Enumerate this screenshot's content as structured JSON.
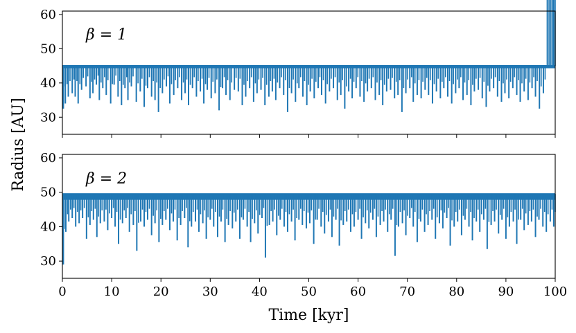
{
  "chart_data": [
    {
      "type": "line",
      "annotation": "β = 1",
      "xlim": [
        0,
        100
      ],
      "ylim": [
        25,
        61
      ],
      "yticks": [
        30,
        40,
        50,
        60
      ],
      "ytick_labels": [
        "30",
        "40",
        "50",
        "60"
      ],
      "xticks": [
        0,
        10,
        20,
        30,
        40,
        50,
        60,
        70,
        80,
        90,
        100
      ],
      "xtick_labels": [],
      "grid": false,
      "series": [
        {
          "color": "#1f77b4",
          "baseline": 45,
          "band_low": 44.3,
          "dip_x": [
            0.2,
            0.6,
            1.2,
            2.0,
            2.6,
            3.2,
            3.9,
            4.8,
            5.6,
            6.2,
            6.9,
            7.5,
            8.2,
            8.9,
            9.8,
            10.5,
            11.3,
            12.0,
            12.7,
            13.3,
            14.0,
            15.0,
            15.8,
            16.6,
            17.3,
            18.1,
            18.8,
            19.5,
            20.3,
            21.1,
            21.8,
            22.6,
            23.4,
            24.2,
            24.9,
            25.6,
            26.4,
            27.2,
            28.0,
            28.7,
            29.4,
            30.2,
            31.0,
            31.8,
            32.5,
            33.2,
            34.0,
            34.9,
            35.7,
            36.5,
            37.2,
            38.0,
            38.8,
            39.5,
            40.3,
            41.1,
            41.9,
            42.6,
            43.3,
            44.1,
            44.9,
            45.7,
            46.5,
            47.3,
            48.0,
            48.8,
            49.6,
            50.3,
            51.1,
            51.9,
            52.6,
            53.4,
            54.2,
            55.0,
            55.8,
            56.5,
            57.3,
            58.1,
            58.8,
            59.6,
            60.4,
            61.2,
            61.9,
            62.7,
            63.5,
            64.3,
            65.0,
            65.8,
            66.6,
            67.4,
            68.1,
            68.9,
            69.7,
            70.5,
            71.2,
            72.0,
            72.8,
            73.6,
            74.3,
            75.1,
            75.9,
            76.7,
            77.4,
            78.2,
            79.0,
            79.8,
            80.5,
            81.3,
            82.1,
            82.9,
            83.6,
            84.4,
            85.2,
            86.0,
            86.7,
            87.5,
            88.3,
            89.1,
            89.8,
            90.6,
            91.4,
            92.2,
            92.9,
            93.7,
            94.5,
            95.3,
            96.0,
            96.8,
            97.6,
            98.4,
            99.1,
            99.7
          ],
          "dip_y": [
            32.5,
            34,
            36,
            37,
            36,
            34,
            38,
            39,
            35.5,
            37,
            39.5,
            35,
            38.5,
            36.5,
            34,
            39.5,
            36,
            33.5,
            38.5,
            35,
            39,
            34.5,
            37.5,
            33,
            38.5,
            36,
            35,
            31.5,
            37,
            39,
            34,
            36.5,
            38.5,
            35,
            37,
            33.5,
            38.5,
            36,
            37.5,
            34,
            38,
            35.5,
            37,
            32,
            38.5,
            36.5,
            35,
            38,
            37.5,
            33.5,
            36,
            38.5,
            34.5,
            37,
            38,
            33.5,
            36,
            37.5,
            35,
            38.5,
            36.5,
            31.5,
            37,
            34.5,
            38.5,
            36,
            33.5,
            37.5,
            35.5,
            38.5,
            36.5,
            34,
            37.5,
            38.5,
            35,
            36.5,
            32.5,
            37.5,
            35.5,
            38.5,
            36,
            34.5,
            37.5,
            38.5,
            35,
            36.5,
            33.5,
            37.5,
            38,
            35.5,
            36.5,
            31.5,
            37,
            38.5,
            34.5,
            36.5,
            35.5,
            38,
            36.5,
            34,
            37.5,
            35.5,
            38.5,
            36,
            34,
            37,
            38.5,
            35,
            36.5,
            33.5,
            37.5,
            38,
            35.5,
            33,
            37.5,
            38.5,
            36,
            34.5,
            37,
            35.5,
            38.5,
            36.5,
            34.5,
            37.5,
            35,
            38.5,
            36,
            32.5,
            37
          ]
        }
      ]
    },
    {
      "type": "line",
      "annotation": "β = 2",
      "xlim": [
        0,
        100
      ],
      "ylim": [
        25,
        61
      ],
      "yticks": [
        30,
        40,
        50,
        60
      ],
      "ytick_labels": [
        "30",
        "40",
        "50",
        "60"
      ],
      "xticks": [
        0,
        10,
        20,
        30,
        40,
        50,
        60,
        70,
        80,
        90,
        100
      ],
      "xtick_labels": [
        "0",
        "10",
        "20",
        "30",
        "40",
        "50",
        "60",
        "70",
        "80",
        "90",
        "100"
      ],
      "xlabel": "Time [kyr]",
      "grid": false,
      "series": [
        {
          "color": "#1f77b4",
          "baseline": 49.5,
          "band_low": 47.8,
          "dip_x": [
            0.2,
            0.7,
            1.3,
            2.0,
            2.7,
            3.4,
            4.1,
            4.9,
            5.6,
            6.3,
            7.0,
            7.7,
            8.5,
            9.2,
            10.0,
            10.7,
            11.4,
            12.2,
            12.9,
            13.6,
            14.4,
            15.1,
            15.9,
            16.6,
            17.3,
            18.1,
            18.8,
            19.6,
            20.3,
            21.0,
            21.8,
            22.5,
            23.3,
            24.0,
            24.8,
            25.5,
            26.2,
            27.0,
            27.7,
            28.5,
            29.2,
            30.0,
            30.7,
            31.5,
            32.2,
            33.0,
            33.7,
            34.5,
            35.2,
            36.0,
            36.7,
            37.5,
            38.2,
            39.0,
            39.7,
            40.5,
            41.2,
            42.0,
            42.7,
            43.5,
            44.2,
            45.0,
            45.7,
            46.5,
            47.2,
            48.0,
            48.7,
            49.5,
            50.2,
            51.0,
            51.7,
            52.5,
            53.2,
            54.0,
            54.7,
            55.5,
            56.2,
            57.0,
            57.7,
            58.5,
            59.2,
            60.0,
            60.7,
            61.5,
            62.2,
            63.0,
            63.7,
            64.5,
            65.2,
            66.0,
            66.7,
            67.5,
            68.2,
            69.0,
            69.7,
            70.5,
            71.2,
            72.0,
            72.7,
            73.5,
            74.2,
            75.0,
            75.7,
            76.5,
            77.2,
            78.0,
            78.7,
            79.5,
            80.2,
            81.0,
            81.7,
            82.5,
            83.2,
            84.0,
            84.7,
            85.5,
            86.2,
            87.0,
            87.7,
            88.5,
            89.2,
            90.0,
            90.7,
            91.5,
            92.2,
            93.0,
            93.7,
            94.5,
            95.2,
            96.0,
            96.7,
            97.5,
            98.2,
            99.0,
            99.7
          ],
          "dip_y": [
            29,
            38.5,
            41.5,
            42.5,
            40,
            41,
            42.5,
            36.5,
            40.5,
            42,
            37,
            41,
            41.5,
            39,
            42.5,
            40,
            35,
            41,
            42.5,
            38.5,
            40.5,
            33,
            41.5,
            40,
            42,
            37.5,
            41,
            35.5,
            40.5,
            42,
            39,
            41.5,
            36,
            40.5,
            42.5,
            34,
            40,
            41.5,
            38.5,
            41,
            36.5,
            42,
            40,
            37,
            41.5,
            35.5,
            40.5,
            39.5,
            41.5,
            36.5,
            42,
            40,
            35.5,
            41,
            38,
            42.5,
            31,
            40.5,
            41.5,
            37.5,
            42,
            40,
            38.5,
            41.5,
            36,
            42,
            40.5,
            39.5,
            41,
            35,
            42,
            40,
            38,
            41.5,
            37,
            42,
            34.5,
            40.5,
            41.5,
            38.5,
            40,
            42,
            36.5,
            41,
            39.5,
            42,
            37,
            40.5,
            41.5,
            38.5,
            42,
            31.5,
            40,
            41,
            37.5,
            42.5,
            40,
            35.5,
            41.5,
            38.5,
            40.5,
            42,
            36.5,
            41,
            39.5,
            42.5,
            34.5,
            40,
            41.5,
            37.5,
            42,
            40,
            36,
            41.5,
            38.5,
            42,
            33.5,
            40.5,
            41.5,
            38,
            42,
            36.5,
            40,
            41.5,
            35,
            42,
            39,
            40.5,
            41.5,
            37,
            42,
            40,
            38.5,
            41.5,
            40
          ]
        }
      ]
    }
  ],
  "figure": {
    "ylabel": "Radius [AU]"
  }
}
